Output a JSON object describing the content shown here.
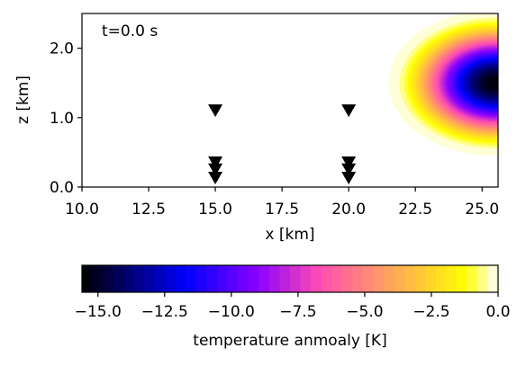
{
  "chart_data": [
    {
      "type": "heatmap",
      "annotation": "t=0.0 s",
      "xlabel": "x [km]",
      "ylabel": "z [km]",
      "xlim": [
        10.0,
        25.6
      ],
      "ylim": [
        0.0,
        2.5
      ],
      "x_ticks": [
        {
          "value": 10.0,
          "label": "10.0"
        },
        {
          "value": 12.5,
          "label": "12.5"
        },
        {
          "value": 15.0,
          "label": "15.0"
        },
        {
          "value": 17.5,
          "label": "17.5"
        },
        {
          "value": 20.0,
          "label": "20.0"
        },
        {
          "value": 22.5,
          "label": "22.5"
        },
        {
          "value": 25.0,
          "label": "25.0"
        }
      ],
      "y_ticks": [
        {
          "value": 0.0,
          "label": "0.0"
        },
        {
          "value": 1.0,
          "label": "1.0"
        },
        {
          "value": 2.0,
          "label": "2.0"
        }
      ],
      "bubble": {
        "center_x": 25.5,
        "center_z": 1.5,
        "radius_x": 4.0,
        "radius_z": 1.05,
        "min_anomaly": -15.5,
        "profile": "cosine-squared"
      },
      "stations": [
        {
          "x": 15.0,
          "z": 1.1
        },
        {
          "x": 15.0,
          "z": 0.35
        },
        {
          "x": 15.0,
          "z": 0.25
        },
        {
          "x": 15.0,
          "z": 0.13
        },
        {
          "x": 20.0,
          "z": 1.1
        },
        {
          "x": 20.0,
          "z": 0.35
        },
        {
          "x": 20.0,
          "z": 0.25
        },
        {
          "x": 20.0,
          "z": 0.13
        }
      ],
      "grid": false,
      "legend": "none"
    },
    {
      "type": "colorbar",
      "label": "temperature anmoaly [K]",
      "range": [
        -15.6,
        0.0
      ],
      "colormap": "gnuplot2",
      "levels": 40,
      "ticks": [
        {
          "value": -15.0,
          "label": "−15.0"
        },
        {
          "value": -12.5,
          "label": "−12.5"
        },
        {
          "value": -10.0,
          "label": "−10.0"
        },
        {
          "value": -7.5,
          "label": "−7.5"
        },
        {
          "value": -5.0,
          "label": "−5.0"
        },
        {
          "value": -2.5,
          "label": "−2.5"
        },
        {
          "value": 0.0,
          "label": "0.0"
        }
      ]
    }
  ]
}
